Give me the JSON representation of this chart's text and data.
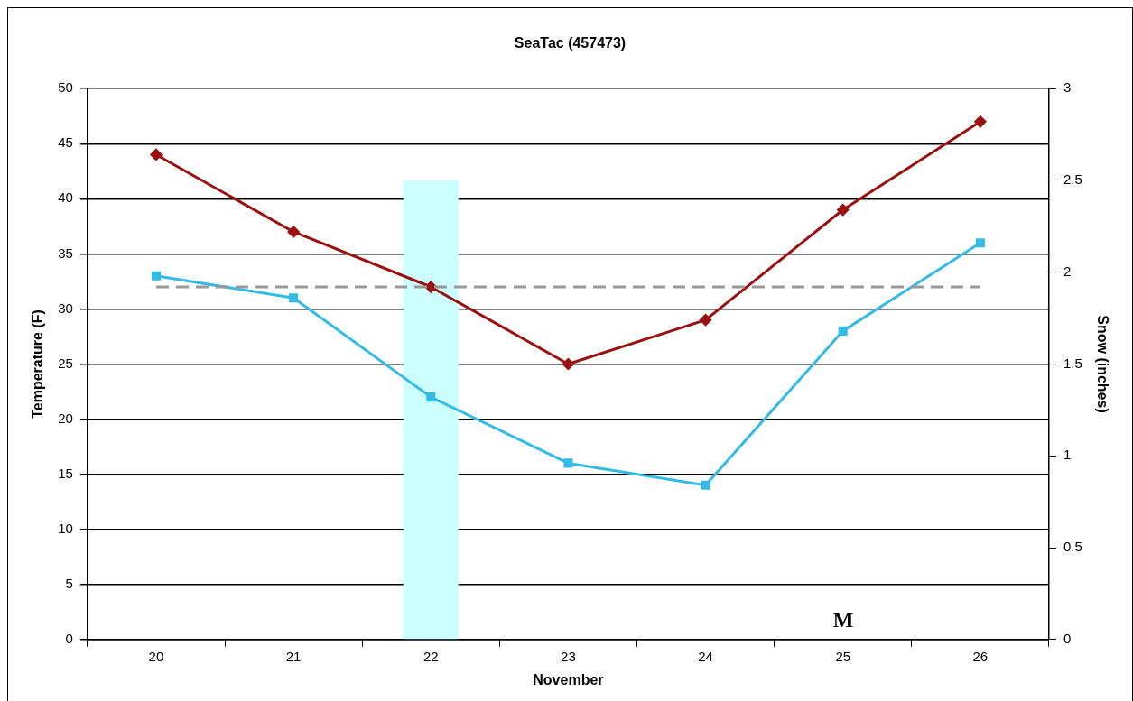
{
  "chart_data": {
    "type": "line",
    "title": "SeaTac (457473)",
    "xlabel": "November",
    "ylabel": "Temperature (F)",
    "y2label": "Snow (inches)",
    "categories": [
      "20",
      "21",
      "22",
      "23",
      "24",
      "25",
      "26"
    ],
    "series": [
      {
        "type": "bar",
        "axis": "y2",
        "color": "#ccffff",
        "values": [
          null,
          null,
          2.5,
          null,
          null,
          null,
          null
        ]
      },
      {
        "color": "#9b1111",
        "marker": "diamond",
        "values": [
          44,
          37,
          32,
          25,
          29,
          39,
          47
        ]
      },
      {
        "color": "#33bbe6",
        "marker": "square",
        "values": [
          33,
          31,
          22,
          16,
          14,
          28,
          36
        ]
      }
    ],
    "ylim": [
      0,
      50
    ],
    "yticks": [
      0,
      5,
      10,
      15,
      20,
      25,
      30,
      35,
      40,
      45,
      50
    ],
    "y2lim": [
      0,
      3
    ],
    "y2ticks": [
      0,
      0.5,
      1,
      1.5,
      2,
      2.5,
      3
    ],
    "grid": "y",
    "ref_lines": [
      {
        "axis": "y",
        "value": 32,
        "color": "#999999",
        "line_style": "dashed"
      }
    ],
    "annotations": [
      "M"
    ]
  }
}
